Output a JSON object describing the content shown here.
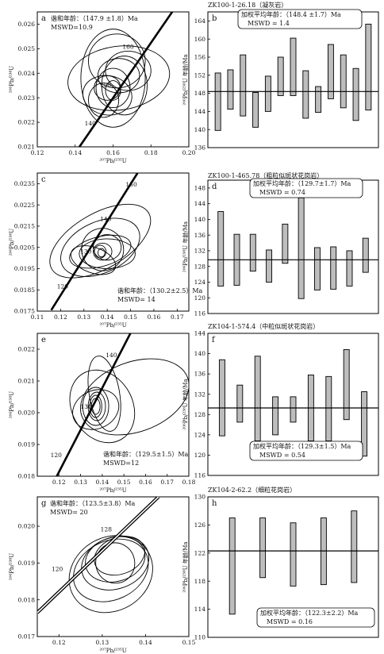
{
  "chart_data": [
    {
      "type": "scatter",
      "panel_letter": "a",
      "annotation": [
        "谐和年龄：（147.9 ±1.8）Ma",
        "MSWD=10.9"
      ],
      "xlabel": "²⁰⁷Pb/²³⁵U",
      "ylabel": "²⁰⁶Pb/²³⁸U",
      "xlim": [
        0.12,
        0.2
      ],
      "ylim": [
        0.021,
        0.0265
      ],
      "xticks": [
        0.12,
        0.14,
        0.16,
        0.18,
        0.2
      ],
      "xtick_labels": [
        "0.12",
        "0.14",
        "0.16",
        "0.18",
        "0.20"
      ],
      "yticks": [
        0.021,
        0.022,
        0.023,
        0.024,
        0.025,
        0.026
      ],
      "ytick_labels": [
        "0.021",
        "0.022",
        "0.023",
        "0.024",
        "0.025",
        "0.026"
      ],
      "concordia_labels": [
        {
          "text": "140",
          "x": 0.15,
          "y": 0.02197
        },
        {
          "text": "150",
          "x": 0.158,
          "y": 0.02353
        },
        {
          "text": "160",
          "x": 0.17,
          "y": 0.0251
        }
      ],
      "concordia_line": [
        [
          0.1378,
          0.0205
        ],
        [
          0.193,
          0.0267
        ]
      ],
      "ellipses": [
        {
          "cx": 0.163,
          "cy": 0.0238,
          "rx": 0.027,
          "ry": 0.0013,
          "rot": -8
        },
        {
          "cx": 0.16,
          "cy": 0.0238,
          "rx": 0.017,
          "ry": 0.002,
          "rot": 0
        },
        {
          "cx": 0.162,
          "cy": 0.0245,
          "rx": 0.015,
          "ry": 0.0011,
          "rot": 0
        },
        {
          "cx": 0.166,
          "cy": 0.0235,
          "rx": 0.012,
          "ry": 0.0012,
          "rot": 0
        },
        {
          "cx": 0.168,
          "cy": 0.0241,
          "rx": 0.012,
          "ry": 0.0008,
          "rot": 0
        },
        {
          "cx": 0.157,
          "cy": 0.0231,
          "rx": 0.013,
          "ry": 0.0008,
          "rot": 10
        },
        {
          "cx": 0.163,
          "cy": 0.0239,
          "rx": 0.011,
          "ry": 0.0007,
          "rot": 0
        },
        {
          "cx": 0.16,
          "cy": 0.0234,
          "rx": 0.009,
          "ry": 0.0008,
          "rot": 0
        },
        {
          "cx": 0.155,
          "cy": 0.0229,
          "rx": 0.008,
          "ry": 0.0007,
          "rot": 0
        },
        {
          "cx": 0.157,
          "cy": 0.0234,
          "rx": 0.007,
          "ry": 0.0005,
          "rot": 0
        },
        {
          "cx": 0.16,
          "cy": 0.0233,
          "rx": 0.004,
          "ry": 0.0004,
          "rot": 0
        }
      ]
    },
    {
      "type": "bar",
      "panel_letter": "b",
      "sample": "ZK100-1-26.18（凝灰岩）",
      "annotation": [
        "加权平均年龄：（148.4 ±1.7）Ma",
        "MSWD = 1.4"
      ],
      "ylabel": "²⁰⁶Pb/²³⁸U 年龄/Ma",
      "ylim": [
        136,
        166
      ],
      "yticks": [
        136,
        140,
        144,
        148,
        152,
        156,
        160,
        164
      ],
      "ytick_labels": [
        "136",
        "140",
        "144",
        "148",
        "152",
        "156",
        "160",
        "164"
      ],
      "mean": 148.4,
      "errors": [
        [
          139.8,
          152.5
        ],
        [
          144.5,
          153.2
        ],
        [
          143.0,
          156.5
        ],
        [
          140.5,
          148.2
        ],
        [
          144.0,
          151.8
        ],
        [
          147.5,
          156.0
        ],
        [
          147.5,
          160.2
        ],
        [
          142.5,
          153.0
        ],
        [
          143.8,
          149.5
        ],
        [
          146.8,
          158.8
        ],
        [
          144.8,
          156.5
        ],
        [
          142.0,
          153.5
        ],
        [
          144.3,
          163.3
        ]
      ]
    },
    {
      "type": "scatter",
      "panel_letter": "c",
      "annotation": [
        "谐和年龄：（130.2±2.5）Ma",
        "MSWD= 14"
      ],
      "xlabel": "²⁰⁷Pb/²³⁵U",
      "ylabel": "²⁰⁶Pb/²³⁸U",
      "xlim": [
        0.11,
        0.175
      ],
      "ylim": [
        0.0175,
        0.024
      ],
      "xticks": [
        0.11,
        0.12,
        0.13,
        0.14,
        0.15,
        0.16,
        0.17
      ],
      "xtick_labels": [
        "0.11",
        "0.12",
        "0.13",
        "0.14",
        "0.15",
        "0.16",
        "0.17"
      ],
      "yticks": [
        0.0175,
        0.0185,
        0.0195,
        0.0205,
        0.0215,
        0.0225,
        0.0235
      ],
      "ytick_labels": [
        "0.0175",
        "0.0185",
        "0.0195",
        "0.0205",
        "0.0215",
        "0.0225",
        "0.0235"
      ],
      "concordia_labels": [
        {
          "text": "120",
          "x": 0.1225,
          "y": 0.01868
        },
        {
          "text": "130",
          "x": 0.1325,
          "y": 0.02032
        },
        {
          "text": "140",
          "x": 0.141,
          "y": 0.02186
        },
        {
          "text": "150",
          "x": 0.152,
          "y": 0.02348
        }
      ],
      "concordia_line": [
        [
          0.116,
          0.01755
        ],
        [
          0.153,
          0.024
        ]
      ],
      "ellipses": [
        {
          "cx": 0.137,
          "cy": 0.0208,
          "rx": 0.024,
          "ry": 0.0013,
          "rot": -30
        },
        {
          "cx": 0.137,
          "cy": 0.0205,
          "rx": 0.018,
          "ry": 0.0012,
          "rot": -25
        },
        {
          "cx": 0.137,
          "cy": 0.0203,
          "rx": 0.0135,
          "ry": 0.0007,
          "rot": -15
        },
        {
          "cx": 0.14,
          "cy": 0.0202,
          "rx": 0.012,
          "ry": 0.0007,
          "rot": 0
        },
        {
          "cx": 0.138,
          "cy": 0.0204,
          "rx": 0.009,
          "ry": 0.001,
          "rot": -20
        },
        {
          "cx": 0.134,
          "cy": 0.0199,
          "rx": 0.01,
          "ry": 0.0006,
          "rot": 20
        },
        {
          "cx": 0.14,
          "cy": 0.0205,
          "rx": 0.006,
          "ry": 0.0006,
          "rot": 0
        },
        {
          "cx": 0.138,
          "cy": 0.0203,
          "rx": 0.004,
          "ry": 0.0004,
          "rot": 0
        },
        {
          "cx": 0.137,
          "cy": 0.0203,
          "rx": 0.0025,
          "ry": 0.0003,
          "rot": 0
        },
        {
          "cx": 0.1375,
          "cy": 0.02025,
          "rx": 0.0015,
          "ry": 0.0002,
          "rot": 0
        }
      ]
    },
    {
      "type": "bar",
      "panel_letter": "d",
      "sample": "ZK100-1-465.78（粗粒似斑状花岗岩）",
      "annotation": [
        "加权平均年龄：（129.7±1.7）Ma",
        "MSWD = 0.74"
      ],
      "ylabel": "²⁰⁶Pb/²³⁸U 年龄/Ma",
      "ylim": [
        116,
        150
      ],
      "yticks": [
        116,
        120,
        124,
        128,
        132,
        136,
        140,
        144,
        148
      ],
      "ytick_labels": [
        "116",
        "120",
        "124",
        "128",
        "132",
        "136",
        "140",
        "144",
        "148"
      ],
      "mean": 129.7,
      "errors": [
        [
          123.0,
          142.0
        ],
        [
          123.2,
          136.2
        ],
        [
          126.8,
          136.2
        ],
        [
          124.0,
          132.2
        ],
        [
          128.8,
          138.8
        ],
        [
          119.8,
          145.5
        ],
        [
          122.0,
          132.8
        ],
        [
          122.2,
          133.0
        ],
        [
          123.0,
          132.0
        ],
        [
          126.5,
          135.2
        ]
      ]
    },
    {
      "type": "scatter",
      "panel_letter": "e",
      "annotation": [
        "谐和年龄：（129.5±1.5）Ma",
        "MSWD=12"
      ],
      "xlabel": "²⁰⁷Pb/²³⁵U",
      "ylabel": "²⁰⁶Pb/²³⁸U",
      "xlim": [
        0.11,
        0.18
      ],
      "ylim": [
        0.018,
        0.0225
      ],
      "xticks": [
        0.12,
        0.13,
        0.14,
        0.15,
        0.16,
        0.17,
        0.18
      ],
      "xtick_labels": [
        "0.12",
        "0.13",
        "0.14",
        "0.15",
        "0.16",
        "0.17",
        "0.18"
      ],
      "yticks": [
        0.018,
        0.019,
        0.02,
        0.021,
        0.022
      ],
      "ytick_labels": [
        "0.018",
        "0.019",
        "0.020",
        "0.021",
        "0.022"
      ],
      "concordia_labels": [
        {
          "text": "120",
          "x": 0.1205,
          "y": 0.01868
        },
        {
          "text": "130",
          "x": 0.1343,
          "y": 0.0202
        },
        {
          "text": "140",
          "x": 0.146,
          "y": 0.02183
        }
      ],
      "concordia_line": [
        [
          0.119,
          0.018
        ],
        [
          0.153,
          0.0225
        ]
      ],
      "ellipses": [
        {
          "cx": 0.155,
          "cy": 0.0205,
          "rx": 0.026,
          "ry": 0.0011,
          "rot": -20
        },
        {
          "cx": 0.14,
          "cy": 0.0202,
          "rx": 0.014,
          "ry": 0.0012,
          "rot": -30
        },
        {
          "cx": 0.137,
          "cy": 0.0201,
          "rx": 0.011,
          "ry": 0.0006,
          "rot": -25
        },
        {
          "cx": 0.141,
          "cy": 0.0206,
          "rx": 0.007,
          "ry": 0.0012,
          "rot": -10
        },
        {
          "cx": 0.137,
          "cy": 0.0202,
          "rx": 0.006,
          "ry": 0.0006,
          "rot": 0
        },
        {
          "cx": 0.1375,
          "cy": 0.0202,
          "rx": 0.004,
          "ry": 0.00045,
          "rot": 0
        },
        {
          "cx": 0.137,
          "cy": 0.0202,
          "rx": 0.0028,
          "ry": 0.00035,
          "rot": 0
        },
        {
          "cx": 0.137,
          "cy": 0.0202,
          "rx": 0.002,
          "ry": 0.00025,
          "rot": 0
        }
      ]
    },
    {
      "type": "bar",
      "panel_letter": "f",
      "sample": "ZK104-1-574.4（中粒似斑状花岗岩）",
      "annotation": [
        "加权平均年龄：（129.3±1.5）Ma",
        "MSWD = 0.54"
      ],
      "ylabel": "²⁰⁶Pb/²³⁸U 年龄/Ma",
      "ylim": [
        116,
        144
      ],
      "yticks": [
        116,
        120,
        124,
        128,
        132,
        136,
        140,
        144
      ],
      "ytick_labels": [
        "116",
        "120",
        "124",
        "128",
        "132",
        "136",
        "140",
        "144"
      ],
      "mean": 129.3,
      "errors": [
        [
          123.8,
          138.8
        ],
        [
          126.5,
          133.8
        ],
        [
          122.8,
          139.5
        ],
        [
          124.0,
          131.5
        ],
        [
          126.5,
          131.5
        ],
        [
          122.8,
          135.8
        ],
        [
          122.8,
          135.5
        ],
        [
          127.0,
          140.8
        ],
        [
          119.8,
          132.5
        ]
      ]
    },
    {
      "type": "scatter",
      "panel_letter": "g",
      "annotation": [
        "谐和年龄：（123.5±3.8）Ma",
        "MSWD= 20"
      ],
      "xlabel": "²⁰⁷Pb/²³⁵U",
      "ylabel": "²⁰⁶Pb/²³⁸U",
      "xlim": [
        0.115,
        0.15
      ],
      "ylim": [
        0.017,
        0.0208
      ],
      "xticks": [
        0.12,
        0.13,
        0.14,
        0.15
      ],
      "xtick_labels": [
        "0.12",
        "0.13",
        "0.14",
        "0.15"
      ],
      "yticks": [
        0.017,
        0.018,
        0.019,
        0.02
      ],
      "ytick_labels": [
        "0.017",
        "0.018",
        "0.019",
        "0.020"
      ],
      "concordia_labels": [
        {
          "text": "120",
          "x": 0.1205,
          "y": 0.01885
        },
        {
          "text": "128",
          "x": 0.1318,
          "y": 0.01993
        }
      ],
      "concordia_line": [
        [
          0.115,
          0.01765
        ],
        [
          0.143,
          0.0208
        ]
      ],
      "ellipses": [
        {
          "cx": 0.132,
          "cy": 0.0187,
          "rx": 0.01,
          "ry": 0.001,
          "rot": -30
        },
        {
          "cx": 0.132,
          "cy": 0.0188,
          "rx": 0.009,
          "ry": 0.0008,
          "rot": -25
        },
        {
          "cx": 0.133,
          "cy": 0.019,
          "rx": 0.008,
          "ry": 0.0007,
          "rot": -20
        },
        {
          "cx": 0.133,
          "cy": 0.0191,
          "rx": 0.007,
          "ry": 0.0006,
          "rot": -15
        },
        {
          "cx": 0.134,
          "cy": 0.0192,
          "rx": 0.006,
          "ry": 0.0005,
          "rot": -20
        },
        {
          "cx": 0.133,
          "cy": 0.019,
          "rx": 0.0045,
          "ry": 0.00055,
          "rot": -10
        }
      ]
    },
    {
      "type": "bar",
      "panel_letter": "h",
      "sample": "ZK104-2-62.2（细粒花岗岩）",
      "annotation": [
        "加权平均年龄：（122.3±2.2）Ma",
        "MSWD = 0.16"
      ],
      "ylabel": "²⁰⁶Pb/²³⁸U 年龄/Ma",
      "ylim": [
        110,
        130
      ],
      "yticks": [
        110,
        114,
        118,
        122,
        126,
        130
      ],
      "ytick_labels": [
        "110",
        "114",
        "118",
        "122",
        "126",
        "130"
      ],
      "mean": 122.3,
      "errors": [
        [
          113.3,
          127.0
        ],
        [
          118.5,
          127.0
        ],
        [
          117.3,
          126.3
        ],
        [
          117.5,
          127.0
        ],
        [
          117.8,
          128.0
        ]
      ]
    }
  ]
}
